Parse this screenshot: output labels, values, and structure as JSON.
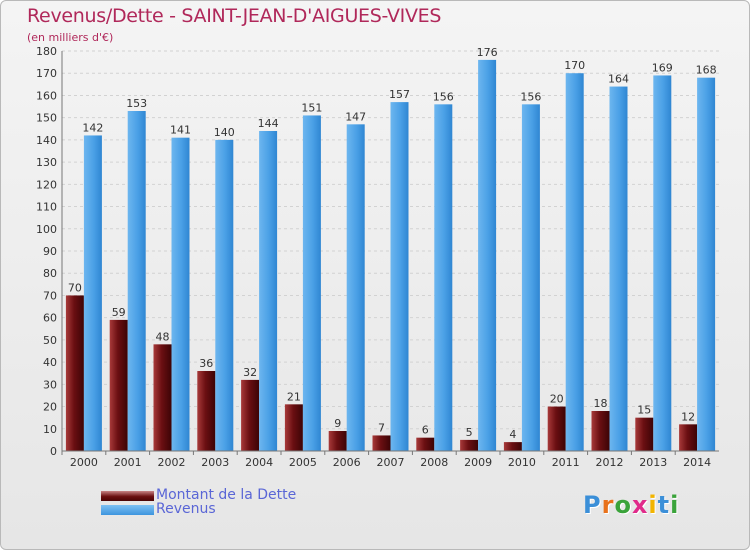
{
  "title": "Revenus/Dette - SAINT-JEAN-D'AIGUES-VIVES",
  "subtitle": "(en milliers d'€)",
  "colors": {
    "debt": "#6b0f12",
    "revenue": "#4da3e8",
    "title": "#b0285a",
    "legend_text": "#5a66d6"
  },
  "chart_data": {
    "type": "bar",
    "title": "Revenus/Dette - SAINT-JEAN-D'AIGUES-VIVES",
    "subtitle": "(en milliers d'€)",
    "xlabel": "",
    "ylabel": "",
    "ylim": [
      0,
      180
    ],
    "yticks": [
      0,
      10,
      20,
      30,
      40,
      50,
      60,
      70,
      80,
      90,
      100,
      110,
      120,
      130,
      140,
      150,
      160,
      170,
      180
    ],
    "grid": true,
    "legend_position": "bottom-left",
    "categories": [
      "2000",
      "2001",
      "2002",
      "2003",
      "2004",
      "2005",
      "2006",
      "2007",
      "2008",
      "2009",
      "2010",
      "2011",
      "2012",
      "2013",
      "2014"
    ],
    "series": [
      {
        "name": "Montant de la Dette",
        "values": [
          70,
          59,
          48,
          36,
          32,
          21,
          9,
          7,
          6,
          5,
          4,
          20,
          18,
          15,
          12
        ]
      },
      {
        "name": "Revenus",
        "values": [
          142,
          153,
          141,
          140,
          144,
          151,
          147,
          157,
          156,
          176,
          156,
          170,
          164,
          169,
          168
        ]
      }
    ]
  },
  "logo": {
    "letters": [
      "P",
      "r",
      "o",
      "x",
      "i",
      "t",
      "i"
    ],
    "colors": [
      "#3b8fd8",
      "#e8721c",
      "#3aa33a",
      "#e02a8a",
      "#f2b400",
      "#3b8fd8",
      "#3aa33a"
    ]
  }
}
